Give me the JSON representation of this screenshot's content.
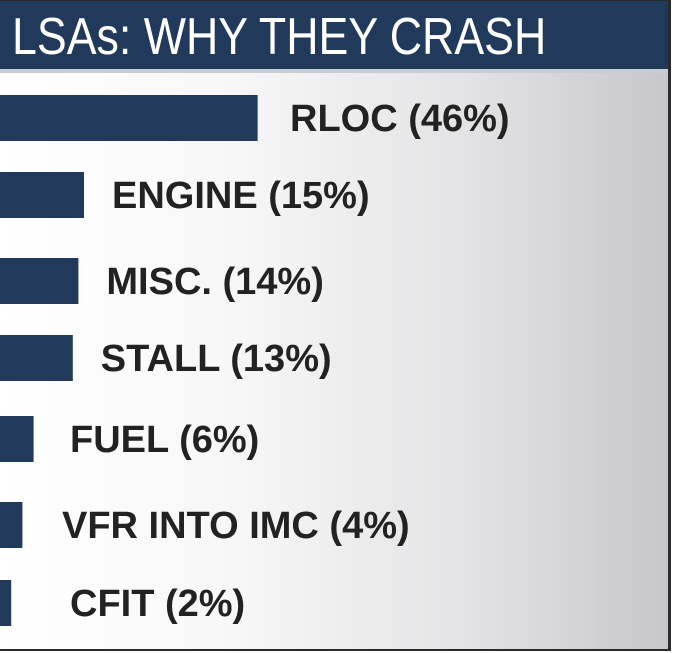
{
  "title": "LSAs: WHY THEY CRASH",
  "colors": {
    "bar": "#213a5c",
    "title_background": "#213a5c",
    "title_text": "#ffffff",
    "label_text": "#222222"
  },
  "chart_data": {
    "type": "bar",
    "orientation": "horizontal",
    "title": "LSAs: WHY THEY CRASH",
    "categories": [
      "RLOC",
      "ENGINE",
      "MISC.",
      "STALL",
      "FUEL",
      "VFR INTO IMC",
      "CFIT"
    ],
    "values": [
      46,
      15,
      14,
      13,
      6,
      4,
      2
    ],
    "labels": [
      "RLOC (46%)",
      "ENGINE (15%)",
      "MISC. (14%)",
      "STALL (13%)",
      "FUEL (6%)",
      "VFR INTO IMC (4%)",
      "CFIT (2%)"
    ],
    "unit": "%",
    "xlabel": "",
    "ylabel": "",
    "grid": false,
    "legend": "none"
  }
}
